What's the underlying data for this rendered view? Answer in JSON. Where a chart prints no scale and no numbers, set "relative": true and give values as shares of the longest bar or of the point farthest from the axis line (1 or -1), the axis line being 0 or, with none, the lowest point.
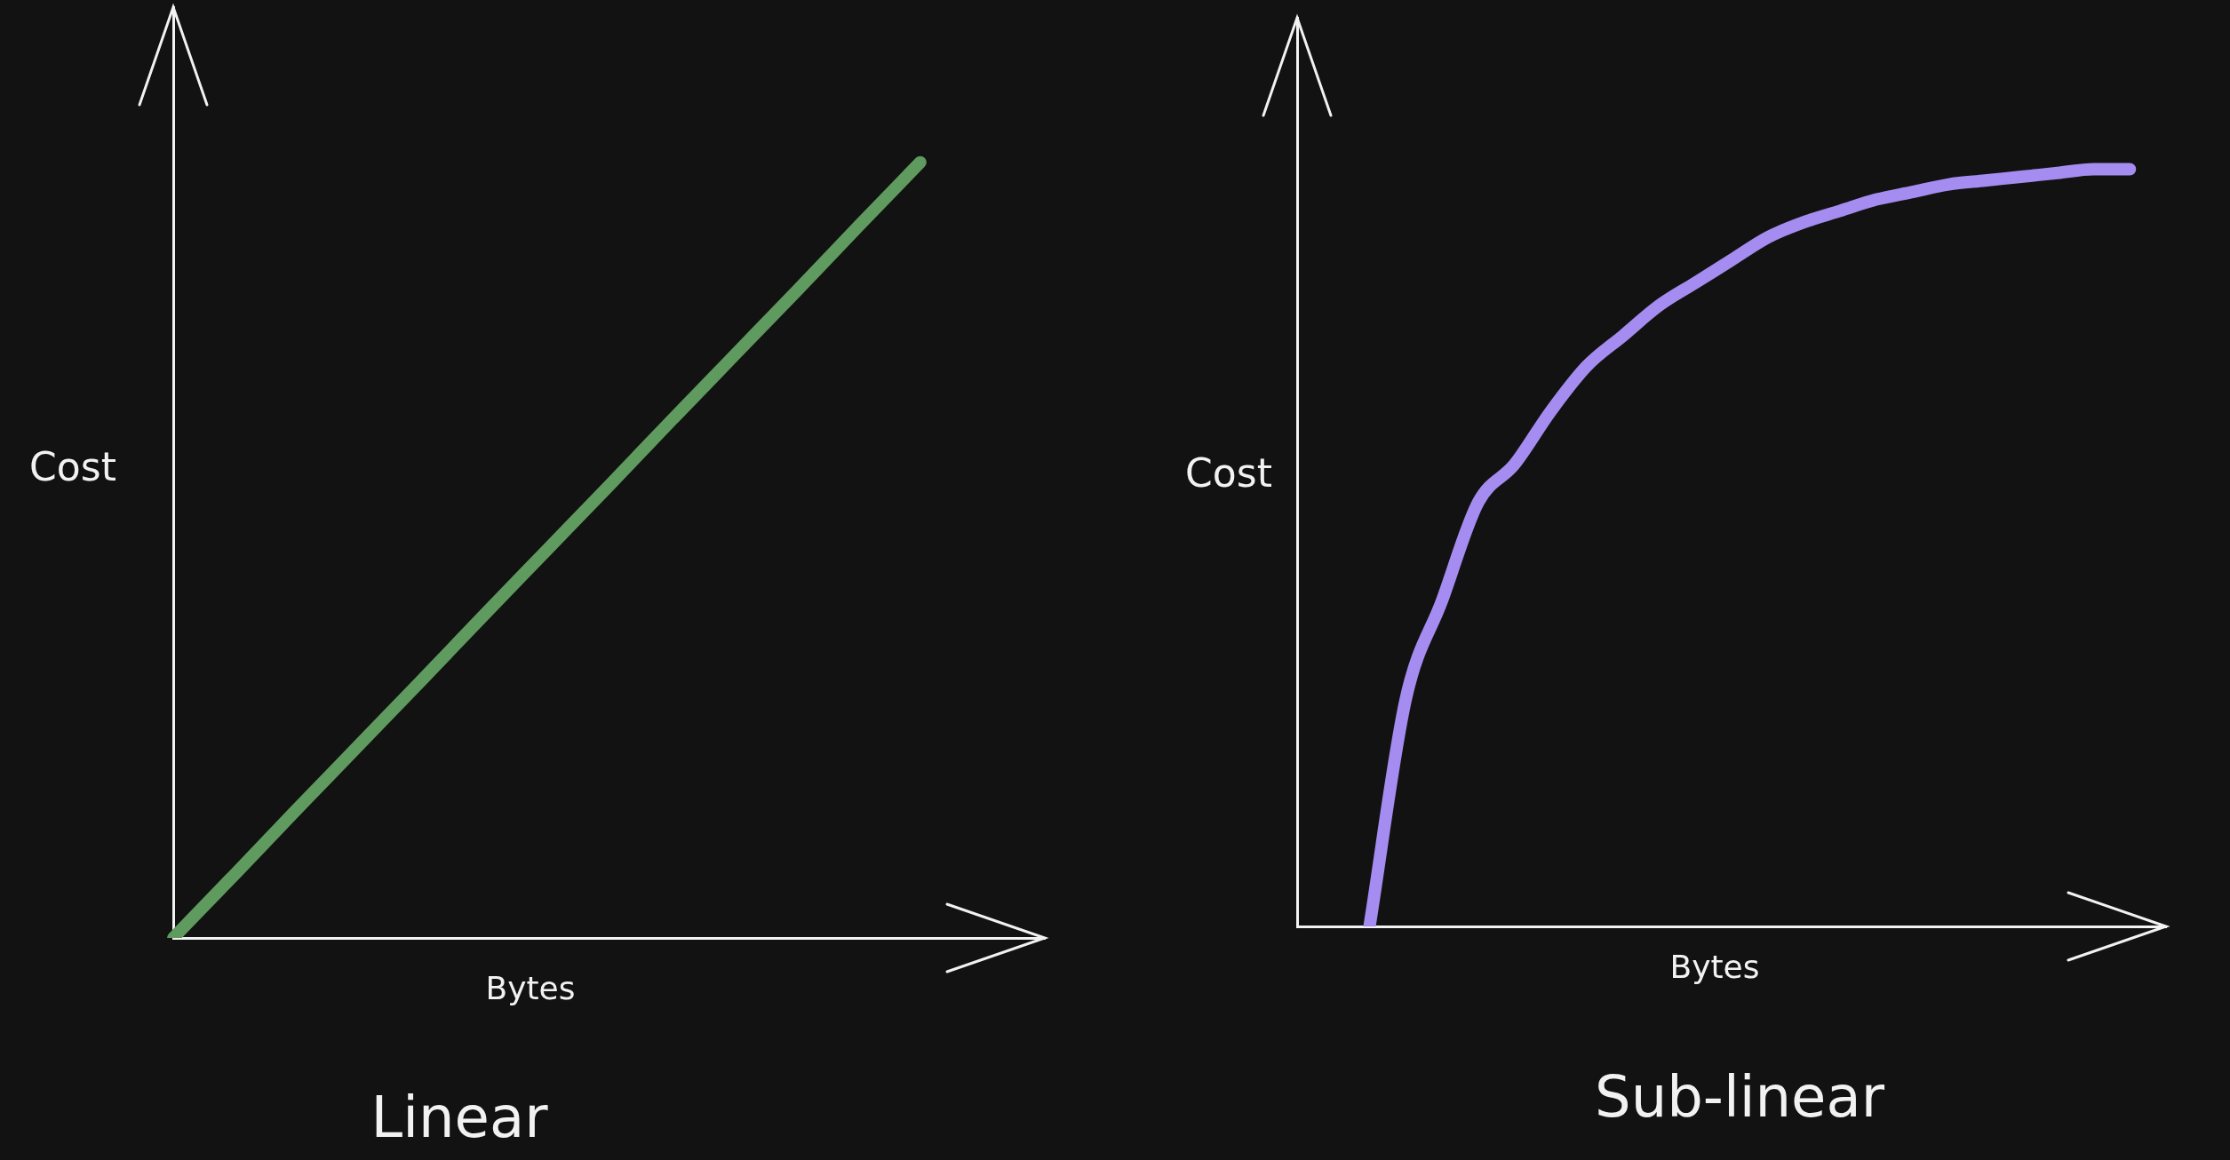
{
  "chart_data": [
    {
      "type": "line",
      "title": "Linear",
      "xlabel": "Bytes",
      "ylabel": "Cost",
      "relative": true,
      "categories": [
        null,
        null,
        null,
        null,
        null,
        null,
        null,
        null,
        null,
        null,
        null,
        null,
        null,
        null,
        null
      ],
      "series": [
        {
          "color": "#5f9a5f",
          "values": [
            0,
            0.083,
            0.167,
            0.25,
            0.333,
            0.417,
            0.5,
            0.583,
            0.667,
            0.75,
            0.833,
            0.917,
            1,
            null,
            null
          ]
        }
      ]
    },
    {
      "type": "line",
      "title": "Sub-linear",
      "xlabel": "Bytes",
      "ylabel": "Cost",
      "relative": true,
      "categories": [
        null,
        null,
        null,
        null,
        null,
        null,
        null,
        null,
        null,
        null,
        null,
        null,
        null,
        null,
        null,
        null,
        null,
        null,
        null,
        null,
        null,
        null,
        null,
        null,
        null
      ],
      "series": [
        {
          "color": "#a58cf0",
          "values": [
            null,
            null,
            0,
            0.3,
            0.43,
            0.56,
            0.61,
            0.68,
            0.74,
            0.78,
            0.82,
            0.85,
            0.88,
            0.91,
            0.93,
            0.945,
            0.96,
            0.97,
            0.98,
            0.985,
            0.99,
            0.995,
            1,
            1,
            null
          ]
        }
      ]
    }
  ]
}
